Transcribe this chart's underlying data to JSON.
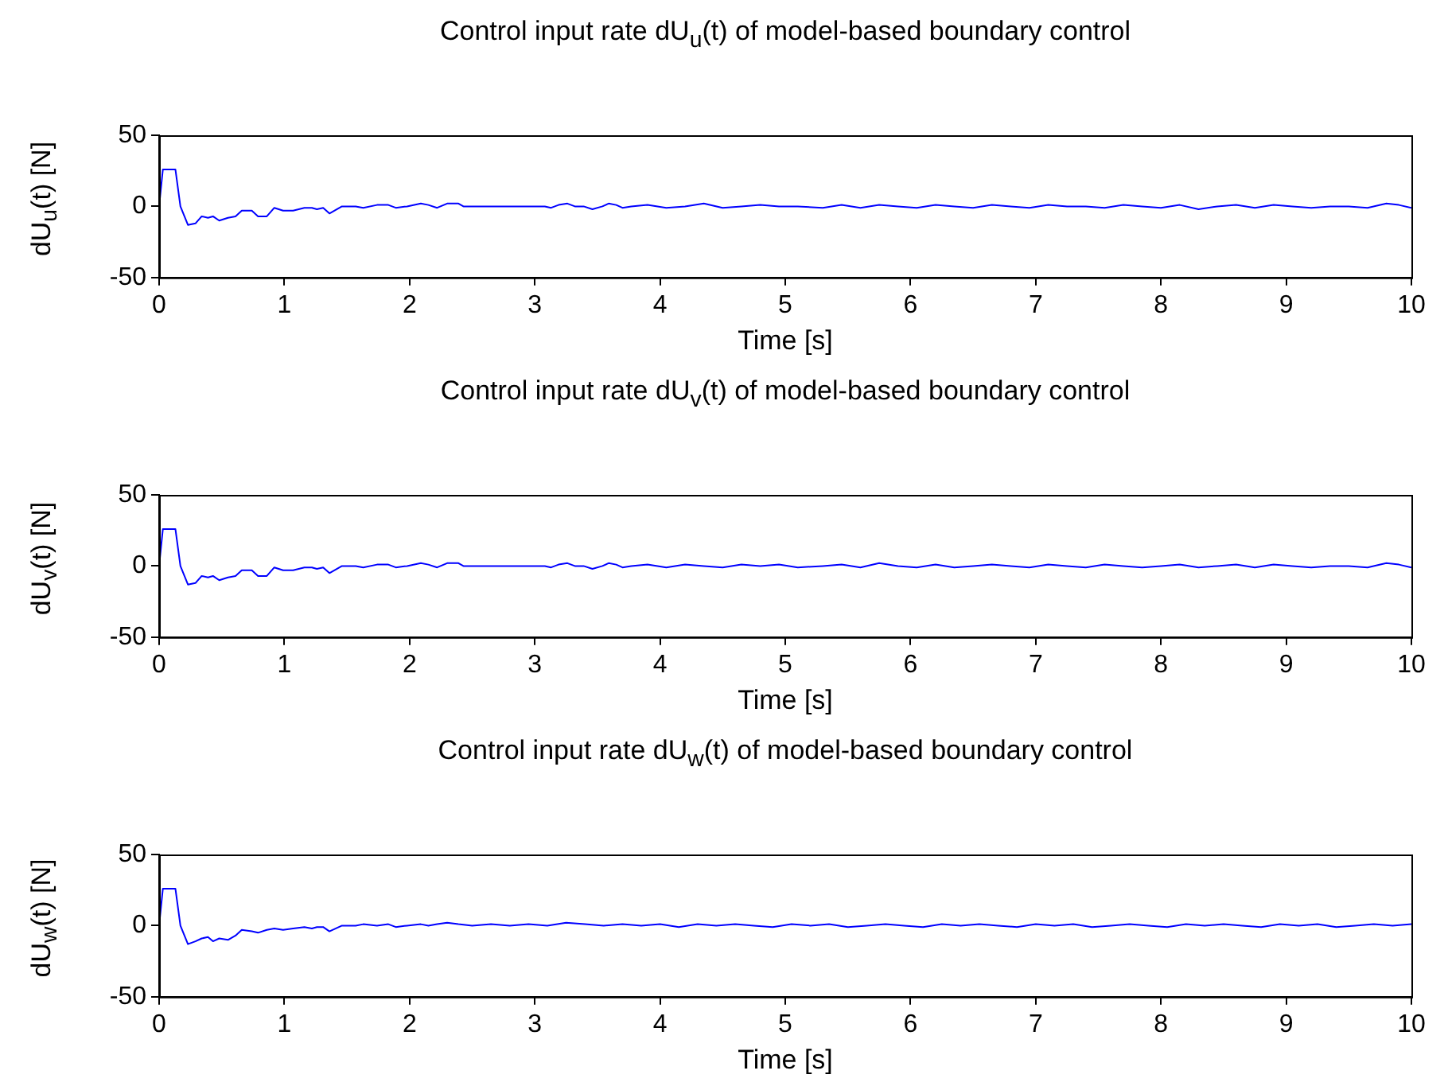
{
  "chart_data": [
    {
      "type": "line",
      "title": "Control input rate dU$_{u}$(t) of model-based boundary control",
      "xlabel": "Time [s]",
      "ylabel": "dU$_{u}$(t) [N]",
      "xlim": [
        0,
        10
      ],
      "xticks": [
        0,
        1,
        2,
        3,
        4,
        5,
        6,
        7,
        8,
        9,
        10
      ],
      "ylim": [
        -50,
        50
      ],
      "yticks": [
        -50,
        0,
        50
      ],
      "x": [
        0,
        0.03,
        0.13,
        0.17,
        0.23,
        0.29,
        0.34,
        0.39,
        0.43,
        0.48,
        0.55,
        0.61,
        0.66,
        0.74,
        0.79,
        0.86,
        0.92,
        0.99,
        1.07,
        1.16,
        1.22,
        1.26,
        1.31,
        1.36,
        1.46,
        1.57,
        1.63,
        1.74,
        1.83,
        1.89,
        1.98,
        2.09,
        2.15,
        2.22,
        2.3,
        2.39,
        2.43,
        3.08,
        3.13,
        3.19,
        3.26,
        3.32,
        3.39,
        3.46,
        3.54,
        3.59,
        3.65,
        3.7,
        3.77,
        3.9,
        4.05,
        4.2,
        4.35,
        4.5,
        4.65,
        4.8,
        4.95,
        5.1,
        5.3,
        5.45,
        5.6,
        5.75,
        5.9,
        6.05,
        6.2,
        6.35,
        6.5,
        6.65,
        6.8,
        6.95,
        7.1,
        7.25,
        7.4,
        7.55,
        7.7,
        7.85,
        8,
        8.15,
        8.3,
        8.45,
        8.6,
        8.75,
        8.9,
        9.05,
        9.2,
        9.35,
        9.5,
        9.65,
        9.8,
        9.9,
        10
      ],
      "series": [
        {
          "color": "#0000ff",
          "values": [
            0,
            26,
            26,
            0,
            -13,
            -12,
            -7,
            -8,
            -7,
            -10,
            -8,
            -7,
            -3,
            -3,
            -7,
            -7,
            -1,
            -3,
            -3,
            -1,
            -1,
            -2,
            -1,
            -5,
            0,
            0,
            -1,
            1,
            1,
            -1,
            0,
            2,
            1,
            -1,
            2,
            2,
            0,
            0,
            -1,
            1,
            2,
            0,
            0,
            -2,
            0,
            2,
            1,
            -1,
            0,
            1,
            -1,
            0,
            2,
            -1,
            0,
            1,
            0,
            0,
            -1,
            1,
            -1,
            1,
            0,
            -1,
            1,
            0,
            -1,
            1,
            0,
            -1,
            1,
            0,
            0,
            -1,
            1,
            0,
            -1,
            1,
            -2,
            0,
            1,
            -1,
            1,
            0,
            -1,
            0,
            0,
            -1,
            2,
            1,
            -1
          ]
        }
      ]
    },
    {
      "type": "line",
      "title": "Control input rate dU$_{v}$(t) of model-based boundary control",
      "xlabel": "Time [s]",
      "ylabel": "dU$_{v}$(t) [N]",
      "xlim": [
        0,
        10
      ],
      "xticks": [
        0,
        1,
        2,
        3,
        4,
        5,
        6,
        7,
        8,
        9,
        10
      ],
      "ylim": [
        -50,
        50
      ],
      "yticks": [
        -50,
        0,
        50
      ],
      "x": [
        0,
        0.03,
        0.13,
        0.17,
        0.23,
        0.29,
        0.34,
        0.39,
        0.43,
        0.48,
        0.55,
        0.61,
        0.66,
        0.74,
        0.79,
        0.86,
        0.92,
        0.99,
        1.07,
        1.16,
        1.22,
        1.26,
        1.31,
        1.36,
        1.46,
        1.57,
        1.63,
        1.74,
        1.83,
        1.89,
        1.98,
        2.09,
        2.15,
        2.22,
        2.3,
        2.39,
        2.43,
        3.08,
        3.13,
        3.19,
        3.26,
        3.32,
        3.39,
        3.46,
        3.54,
        3.59,
        3.65,
        3.7,
        3.77,
        3.9,
        4.05,
        4.2,
        4.35,
        4.5,
        4.65,
        4.8,
        4.95,
        5.1,
        5.3,
        5.45,
        5.6,
        5.75,
        5.9,
        6.05,
        6.2,
        6.35,
        6.5,
        6.65,
        6.8,
        6.95,
        7.1,
        7.25,
        7.4,
        7.55,
        7.7,
        7.85,
        8,
        8.15,
        8.3,
        8.45,
        8.6,
        8.75,
        8.9,
        9.05,
        9.2,
        9.35,
        9.5,
        9.65,
        9.8,
        9.9,
        10
      ],
      "series": [
        {
          "color": "#0000ff",
          "values": [
            0,
            26,
            26,
            0,
            -13,
            -12,
            -7,
            -8,
            -7,
            -10,
            -8,
            -7,
            -3,
            -3,
            -7,
            -7,
            -1,
            -3,
            -3,
            -1,
            -1,
            -2,
            -1,
            -5,
            0,
            0,
            -1,
            1,
            1,
            -1,
            0,
            2,
            1,
            -1,
            2,
            2,
            0,
            0,
            -1,
            1,
            2,
            0,
            0,
            -2,
            0,
            2,
            1,
            -1,
            0,
            1,
            -1,
            1,
            0,
            -1,
            1,
            0,
            1,
            -1,
            0,
            1,
            -1,
            2,
            0,
            -1,
            1,
            -1,
            0,
            1,
            0,
            -1,
            1,
            0,
            -1,
            1,
            0,
            -1,
            0,
            1,
            -1,
            0,
            1,
            -1,
            1,
            0,
            -1,
            0,
            0,
            -1,
            2,
            1,
            -1
          ]
        }
      ]
    },
    {
      "type": "line",
      "title": "Control input rate dU$_{w}$(t) of model-based boundary control",
      "xlabel": "Time [s]",
      "ylabel": "dU$_{w}$(t) [N]",
      "xlim": [
        0,
        10
      ],
      "xticks": [
        0,
        1,
        2,
        3,
        4,
        5,
        6,
        7,
        8,
        9,
        10
      ],
      "ylim": [
        -50,
        50
      ],
      "yticks": [
        -50,
        0,
        50
      ],
      "x": [
        0,
        0.03,
        0.13,
        0.17,
        0.23,
        0.29,
        0.34,
        0.39,
        0.43,
        0.48,
        0.55,
        0.61,
        0.66,
        0.74,
        0.79,
        0.86,
        0.92,
        0.99,
        1.07,
        1.16,
        1.22,
        1.26,
        1.31,
        1.36,
        1.46,
        1.57,
        1.63,
        1.74,
        1.83,
        1.89,
        1.98,
        2.09,
        2.15,
        2.22,
        2.3,
        2.39,
        2.5,
        2.65,
        2.8,
        2.95,
        3.1,
        3.25,
        3.4,
        3.55,
        3.7,
        3.85,
        4,
        4.15,
        4.3,
        4.45,
        4.6,
        4.75,
        4.9,
        5.05,
        5.2,
        5.35,
        5.5,
        5.65,
        5.8,
        5.95,
        6.1,
        6.25,
        6.4,
        6.55,
        6.7,
        6.85,
        7,
        7.15,
        7.3,
        7.45,
        7.6,
        7.75,
        7.9,
        8.05,
        8.2,
        8.35,
        8.5,
        8.65,
        8.8,
        8.95,
        9.1,
        9.25,
        9.4,
        9.55,
        9.7,
        9.85,
        10
      ],
      "series": [
        {
          "color": "#0000ff",
          "values": [
            0,
            26,
            26,
            0,
            -13,
            -11,
            -9,
            -8,
            -11,
            -9,
            -10,
            -7,
            -3,
            -4,
            -5,
            -3,
            -2,
            -3,
            -2,
            -1,
            -2,
            -1,
            -1,
            -4,
            0,
            0,
            1,
            0,
            1,
            -1,
            0,
            1,
            0,
            1,
            2,
            1,
            0,
            1,
            0,
            1,
            0,
            2,
            1,
            0,
            1,
            0,
            1,
            -1,
            1,
            0,
            1,
            0,
            -1,
            1,
            0,
            1,
            -1,
            0,
            1,
            0,
            -1,
            1,
            0,
            1,
            0,
            -1,
            1,
            0,
            1,
            -1,
            0,
            1,
            0,
            -1,
            1,
            0,
            1,
            0,
            -1,
            1,
            0,
            1,
            -1,
            0,
            1,
            0,
            1
          ]
        }
      ]
    }
  ]
}
